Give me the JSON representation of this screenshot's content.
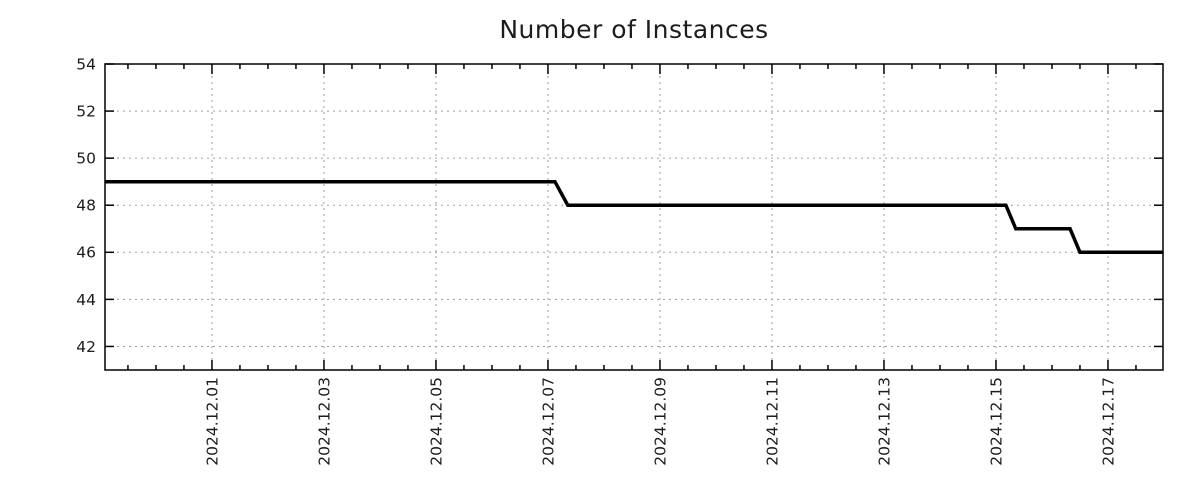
{
  "page": {
    "background": "#ffffff"
  },
  "chart_data": {
    "type": "line",
    "title": "Number of Instances",
    "grid": true,
    "line": {
      "color": "#000000",
      "width": 3.5,
      "style": "step-interpolated"
    },
    "colors": {
      "grid": "#9e9e9e",
      "axis": "#000000",
      "text": "#1c1c1c"
    },
    "x_axis": {
      "type": "datetime",
      "range": [
        "2024-11-29T02:10",
        "2024-12-17T23:35"
      ],
      "major_ticks": [
        {
          "label": "2024.12.01",
          "t": "2024-12-01T00:00"
        },
        {
          "label": "2024.12.03",
          "t": "2024-12-03T00:00"
        },
        {
          "label": "2024.12.05",
          "t": "2024-12-05T00:00"
        },
        {
          "label": "2024.12.07",
          "t": "2024-12-07T00:00"
        },
        {
          "label": "2024.12.09",
          "t": "2024-12-09T00:00"
        },
        {
          "label": "2024.12.11",
          "t": "2024-12-11T00:00"
        },
        {
          "label": "2024.12.13",
          "t": "2024-12-13T00:00"
        },
        {
          "label": "2024.12.15",
          "t": "2024-12-15T00:00"
        },
        {
          "label": "2024.12.17",
          "t": "2024-12-17T00:00"
        }
      ],
      "minor_tick_interval_hours": 12,
      "tick_label_rotation_deg": -90
    },
    "y_axis": {
      "range": [
        41.0,
        54
      ],
      "ticks": [
        42,
        44,
        46,
        48,
        50,
        52,
        54
      ]
    },
    "series": [
      {
        "name": "instances",
        "points": [
          [
            "2024-11-29T02:10",
            49
          ],
          [
            "2024-12-07T03:00",
            49
          ],
          [
            "2024-12-07T08:30",
            48
          ],
          [
            "2024-12-15T04:15",
            48
          ],
          [
            "2024-12-15T08:30",
            47
          ],
          [
            "2024-12-16T07:45",
            47
          ],
          [
            "2024-12-16T12:00",
            46
          ],
          [
            "2024-12-17T23:35",
            46
          ]
        ]
      }
    ]
  }
}
